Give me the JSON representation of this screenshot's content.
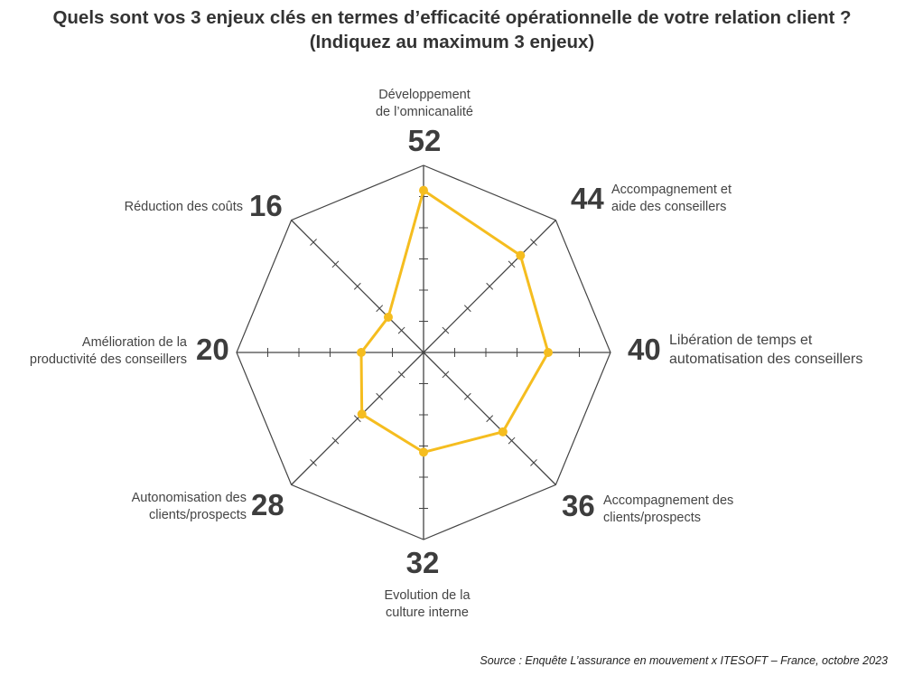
{
  "title_line1": "Quels sont vos 3 enjeux clés en termes d’efficacité opérationnelle de votre relation client ?",
  "title_line2": "(Indiquez au maximum 3 enjeux)",
  "source": "Source : Enquête L’assurance en mouvement x ITESOFT – France, octobre 2023",
  "chart_data": {
    "type": "radar",
    "title": "Quels sont vos 3 enjeux clés en termes d’efficacité opérationnelle de votre relation client ? (Indiquez au maximum 3 enjeux)",
    "categories": [
      {
        "label1": "Développement",
        "label2": "de l’omnicanalité",
        "value": 52
      },
      {
        "label1": "Accompagnement et",
        "label2": "aide des conseillers",
        "value": 44
      },
      {
        "label1": "Libération de temps et",
        "label2": "automatisation des conseillers",
        "value": 40
      },
      {
        "label1": "Accompagnement des",
        "label2": "clients/prospects",
        "value": 36
      },
      {
        "label1": "Evolution de la",
        "label2": "culture interne",
        "value": 32
      },
      {
        "label1": "Autonomisation des",
        "label2": "clients/prospects",
        "value": 28
      },
      {
        "label1": "Amélioration de la",
        "label2": "productivité des conseillers",
        "value": 20
      },
      {
        "label1": "Réduction des coûts",
        "label2": "",
        "value": 16
      }
    ],
    "rlim": [
      0,
      60
    ],
    "tick_step": 10,
    "colors": {
      "series": "#f5bd1f",
      "grid": "#444444"
    }
  }
}
